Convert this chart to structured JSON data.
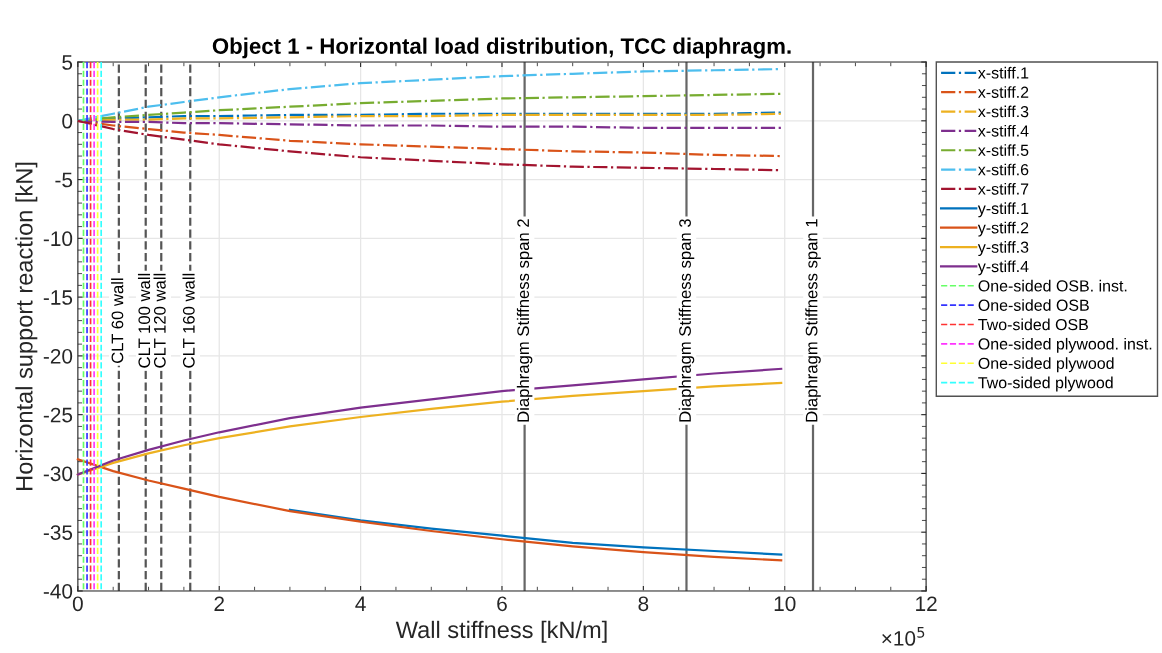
{
  "chart_data": {
    "type": "line",
    "title": "Object 1 - Horizontal load distribution, TCC diaphragm.",
    "xlabel": "Wall stiffness [kN/m]",
    "ylabel": "Horizontal support reaction [kN]",
    "annotations": [
      "×10$^{5}$"
    ],
    "x": [
      0,
      0.5,
      1,
      1.5,
      2,
      3,
      4,
      5,
      6,
      7,
      8,
      9,
      9.95
    ],
    "xlim": [
      0,
      12
    ],
    "xticks": [
      0,
      2,
      4,
      6,
      8,
      10,
      12
    ],
    "ylim": [
      -40,
      5
    ],
    "yticks": [
      -40,
      -35,
      -30,
      -25,
      -20,
      -15,
      -10,
      -5,
      0,
      5
    ],
    "grid": true,
    "legend": "right",
    "marker": "none",
    "series": [
      {
        "name": "x-stiff.1",
        "color": "#0072bd",
        "line_style": "dashdot",
        "values": [
          0,
          0.2,
          0.3,
          0.4,
          0.4,
          0.5,
          0.5,
          0.6,
          0.6,
          0.6,
          0.6,
          0.6,
          0.7
        ]
      },
      {
        "name": "x-stiff.2",
        "color": "#d95319",
        "line_style": "dashdot",
        "values": [
          0,
          -0.4,
          -0.7,
          -1.0,
          -1.2,
          -1.7,
          -2.0,
          -2.2,
          -2.4,
          -2.6,
          -2.7,
          -2.9,
          -3.0
        ]
      },
      {
        "name": "x-stiff.3",
        "color": "#edb120",
        "line_style": "dashdot",
        "values": [
          0,
          0.1,
          0.1,
          0.2,
          0.2,
          0.3,
          0.4,
          0.4,
          0.5,
          0.5,
          0.5,
          0.5,
          0.6
        ]
      },
      {
        "name": "x-stiff.4",
        "color": "#7e2f8e",
        "line_style": "dashdot",
        "values": [
          0,
          -0.1,
          -0.1,
          -0.2,
          -0.2,
          -0.3,
          -0.4,
          -0.4,
          -0.5,
          -0.5,
          -0.6,
          -0.6,
          -0.6
        ]
      },
      {
        "name": "x-stiff.5",
        "color": "#77ac30",
        "line_style": "dashdot",
        "values": [
          0,
          0.3,
          0.5,
          0.7,
          0.9,
          1.2,
          1.5,
          1.7,
          1.9,
          2.0,
          2.1,
          2.2,
          2.3
        ]
      },
      {
        "name": "x-stiff.6",
        "color": "#4dbeee",
        "line_style": "dashdot",
        "values": [
          0,
          0.6,
          1.2,
          1.6,
          2.0,
          2.7,
          3.2,
          3.5,
          3.8,
          4.0,
          4.2,
          4.3,
          4.4
        ]
      },
      {
        "name": "x-stiff.7",
        "color": "#a2142f",
        "line_style": "dashdot",
        "values": [
          0,
          -0.7,
          -1.2,
          -1.6,
          -2.0,
          -2.6,
          -3.1,
          -3.4,
          -3.7,
          -3.9,
          -4.0,
          -4.1,
          -4.2
        ]
      },
      {
        "name": "y-stiff.1",
        "color": "#0072bd",
        "line_style": "solid",
        "values": [
          null,
          null,
          null,
          null,
          null,
          -33.1,
          -34.0,
          -34.7,
          -35.3,
          -35.9,
          -36.3,
          -36.6,
          -36.9
        ]
      },
      {
        "name": "y-stiff.2",
        "color": "#d95319",
        "line_style": "solid",
        "values": [
          -28.8,
          -29.8,
          -30.6,
          -31.3,
          -32.0,
          -33.2,
          -34.1,
          -34.9,
          -35.6,
          -36.2,
          -36.7,
          -37.1,
          -37.4
        ]
      },
      {
        "name": "y-stiff.3",
        "color": "#edb120",
        "line_style": "solid",
        "values": [
          -30.1,
          -29.1,
          -28.3,
          -27.6,
          -27.0,
          -26.0,
          -25.2,
          -24.5,
          -23.9,
          -23.4,
          -23.0,
          -22.6,
          -22.3
        ]
      },
      {
        "name": "y-stiff.4",
        "color": "#7e2f8e",
        "line_style": "solid",
        "values": [
          -30.1,
          -28.9,
          -28.0,
          -27.2,
          -26.5,
          -25.3,
          -24.4,
          -23.7,
          -23.0,
          -22.5,
          -22.0,
          -21.5,
          -21.1
        ]
      },
      {
        "name": "One-sided OSB. inst.",
        "color": "#66ff66",
        "line_style": "dashed",
        "x": [
          0.08,
          0.08
        ],
        "values": [
          -40,
          5
        ]
      },
      {
        "name": "One-sided OSB",
        "color": "#3333ff",
        "line_style": "dashed",
        "x": [
          0.13,
          0.13
        ],
        "values": [
          -40,
          5
        ]
      },
      {
        "name": "Two-sided OSB",
        "color": "#ff3333",
        "line_style": "dashed",
        "x": [
          0.18,
          0.18
        ],
        "values": [
          -40,
          5
        ]
      },
      {
        "name": "One-sided plywood. inst.",
        "color": "#ff33ff",
        "line_style": "dashed",
        "x": [
          0.23,
          0.23
        ],
        "values": [
          -40,
          5
        ]
      },
      {
        "name": "One-sided plywood",
        "color": "#ffff33",
        "line_style": "dashed",
        "x": [
          0.28,
          0.28
        ],
        "values": [
          -40,
          5
        ]
      },
      {
        "name": "Two-sided plywood",
        "color": "#33ffff",
        "line_style": "dashed",
        "x": [
          0.33,
          0.33
        ],
        "values": [
          -40,
          5
        ]
      }
    ],
    "ref_lines": [
      {
        "axis": "x",
        "value": 0.58,
        "label": "CLT 60 wall",
        "color": "#555555",
        "line_style": "dashed"
      },
      {
        "axis": "x",
        "value": 0.96,
        "label": "CLT 100 wall",
        "color": "#555555",
        "line_style": "dashed"
      },
      {
        "axis": "x",
        "value": 1.18,
        "label": "CLT 120 wall",
        "color": "#555555",
        "line_style": "dashed"
      },
      {
        "axis": "x",
        "value": 1.59,
        "label": "CLT 160 wall",
        "color": "#555555",
        "line_style": "dashed"
      },
      {
        "axis": "x",
        "value": 6.32,
        "label": "Diaphragm Stiffness span 2",
        "color": "#666666",
        "line_style": "solid"
      },
      {
        "axis": "x",
        "value": 8.61,
        "label": "Diaphragm Stiffness span 3",
        "color": "#666666",
        "line_style": "solid"
      },
      {
        "axis": "x",
        "value": 10.4,
        "label": "Diaphragm Stiffness span 1",
        "color": "#666666",
        "line_style": "solid"
      }
    ]
  }
}
